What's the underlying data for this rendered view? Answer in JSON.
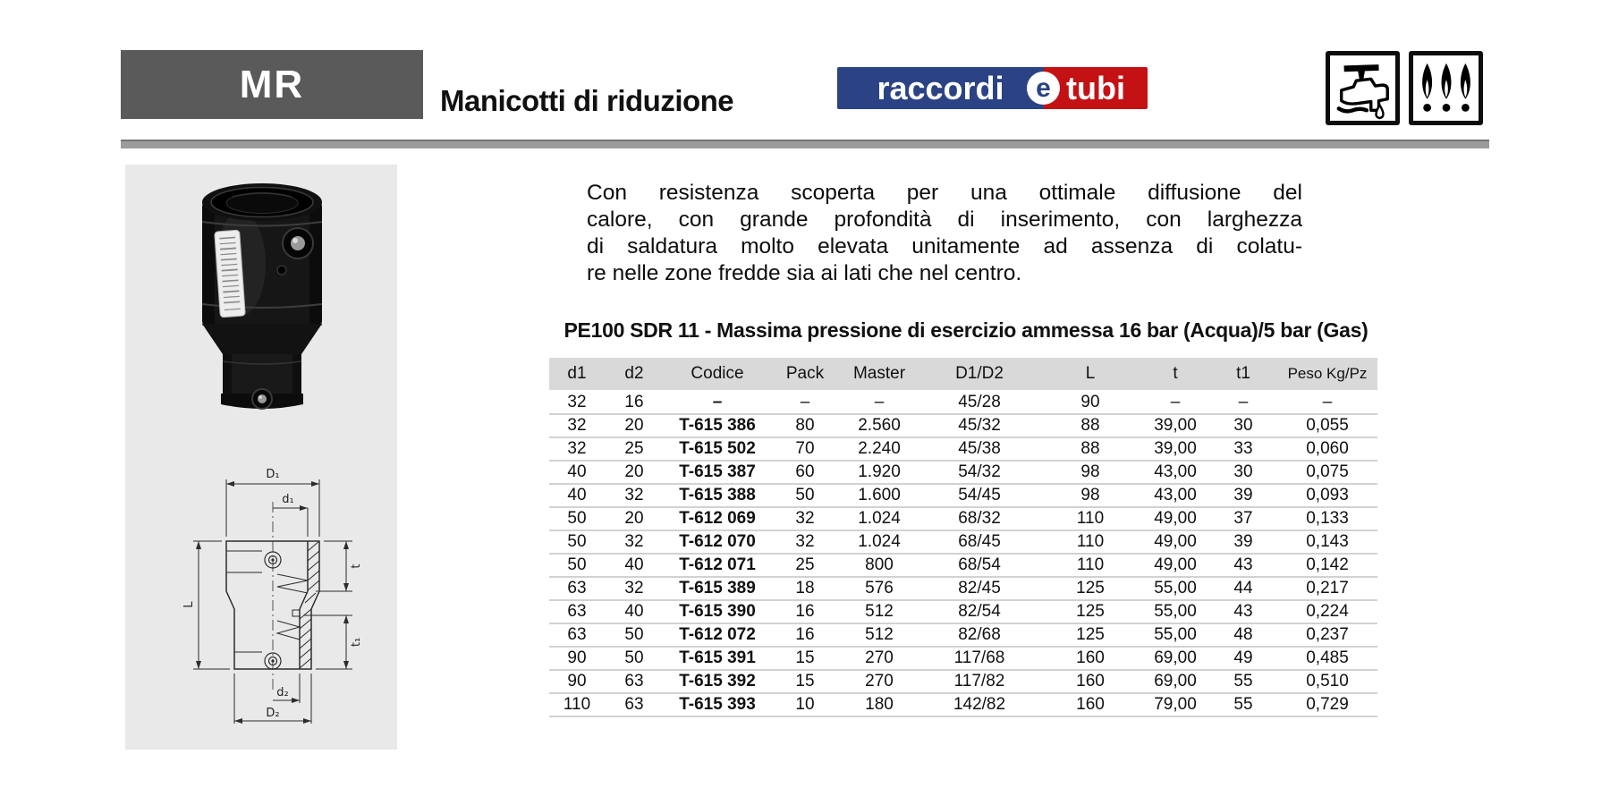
{
  "header": {
    "code": "MR",
    "title": "Manicotti di riduzione"
  },
  "logo": {
    "part1": "raccordi",
    "connector": "e",
    "part2": "tubi"
  },
  "badges": {
    "water_icon": "faucet-with-drop",
    "gas_icon": "three-flames"
  },
  "description": {
    "lines": [
      "Con resistenza scoperta per una ottimale diffusione del",
      "calore, con grande profondità di inserimento, con larghezza",
      "di saldatura molto elevata unitamente ad assenza di colatu-",
      "re nelle zone fredde sia ai lati che nel centro."
    ]
  },
  "table": {
    "title": "PE100 SDR 11 - Massima pressione di esercizio ammessa 16 bar (Acqua)/5 bar (Gas)",
    "columns": [
      "d1",
      "d2",
      "Codice",
      "Pack",
      "Master",
      "D1/D2",
      "L",
      "t",
      "t1",
      "Peso Kg/Pz"
    ],
    "rows": [
      [
        "32",
        "16",
        "–",
        "–",
        "–",
        "45/28",
        "90",
        "–",
        "–",
        "–"
      ],
      [
        "32",
        "20",
        "T-615 386",
        "80",
        "2.560",
        "45/32",
        "88",
        "39,00",
        "30",
        "0,055"
      ],
      [
        "32",
        "25",
        "T-615 502",
        "70",
        "2.240",
        "45/38",
        "88",
        "39,00",
        "33",
        "0,060"
      ],
      [
        "40",
        "20",
        "T-615 387",
        "60",
        "1.920",
        "54/32",
        "98",
        "43,00",
        "30",
        "0,075"
      ],
      [
        "40",
        "32",
        "T-615 388",
        "50",
        "1.600",
        "54/45",
        "98",
        "43,00",
        "39",
        "0,093"
      ],
      [
        "50",
        "20",
        "T-612 069",
        "32",
        "1.024",
        "68/32",
        "110",
        "49,00",
        "37",
        "0,133"
      ],
      [
        "50",
        "32",
        "T-612 070",
        "32",
        "1.024",
        "68/45",
        "110",
        "49,00",
        "39",
        "0,143"
      ],
      [
        "50",
        "40",
        "T-612 071",
        "25",
        "800",
        "68/54",
        "110",
        "49,00",
        "43",
        "0,142"
      ],
      [
        "63",
        "32",
        "T-615 389",
        "18",
        "576",
        "82/45",
        "125",
        "55,00",
        "44",
        "0,217"
      ],
      [
        "63",
        "40",
        "T-615 390",
        "16",
        "512",
        "82/54",
        "125",
        "55,00",
        "43",
        "0,224"
      ],
      [
        "63",
        "50",
        "T-612 072",
        "16",
        "512",
        "82/68",
        "125",
        "55,00",
        "48",
        "0,237"
      ],
      [
        "90",
        "50",
        "T-615 391",
        "15",
        "270",
        "117/68",
        "160",
        "69,00",
        "49",
        "0,485"
      ],
      [
        "90",
        "63",
        "T-615 392",
        "15",
        "270",
        "117/82",
        "160",
        "69,00",
        "55",
        "0,510"
      ],
      [
        "110",
        "63",
        "T-615 393",
        "10",
        "180",
        "142/82",
        "160",
        "79,00",
        "55",
        "0,729"
      ]
    ]
  },
  "diagram": {
    "labels": {
      "D1": "D₁",
      "d1": "d₁",
      "L": "L",
      "t": "t",
      "t1": "t₁",
      "d2": "d₂",
      "D2": "D₂"
    }
  },
  "colors": {
    "header_box": "#5a5a5a",
    "divider": "#9c9c9c",
    "panel_bg": "#e9e9e9",
    "table_header_bg": "#d9d9d9",
    "logo_blue": "#2b4384",
    "logo_red": "#c41114"
  }
}
